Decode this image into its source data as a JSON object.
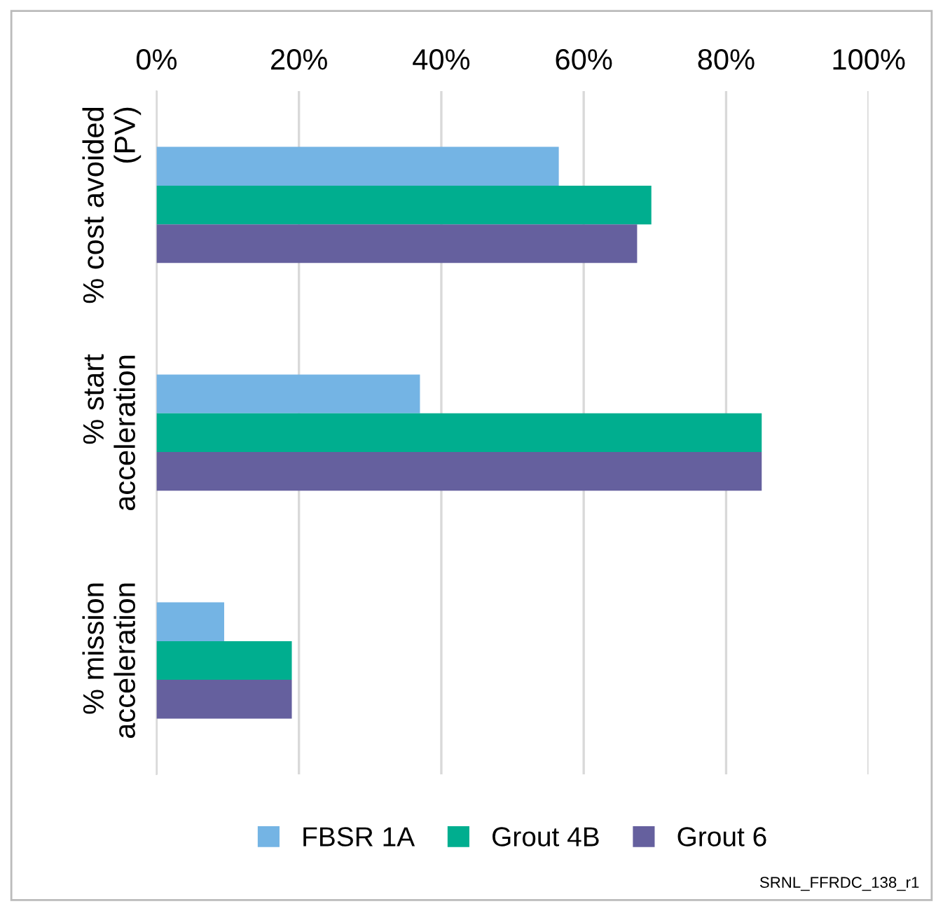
{
  "chart_data": {
    "type": "bar",
    "orientation": "horizontal",
    "categories": [
      "% cost avoided\n(PV)",
      "% start\nacceleration",
      "% mission\nacceleration"
    ],
    "series": [
      {
        "name": "FBSR 1A",
        "color": "#74b4e4",
        "values": [
          56.5,
          37,
          9.5
        ]
      },
      {
        "name": "Grout 4B",
        "color": "#00ae8f",
        "values": [
          69.5,
          85,
          19
        ]
      },
      {
        "name": "Grout 6",
        "color": "#65609e",
        "values": [
          67.5,
          85,
          19
        ]
      }
    ],
    "xlim": [
      0,
      100
    ],
    "xticks": [
      {
        "value": 0,
        "label": "0%"
      },
      {
        "value": 20,
        "label": "20%"
      },
      {
        "value": 40,
        "label": "40%"
      },
      {
        "value": 60,
        "label": "60%"
      },
      {
        "value": 80,
        "label": "80%"
      },
      {
        "value": 100,
        "label": "100%"
      }
    ],
    "grid": "x",
    "legend": "bottom",
    "annotations": [
      "SRNL_FFRDC_138_r1"
    ]
  }
}
